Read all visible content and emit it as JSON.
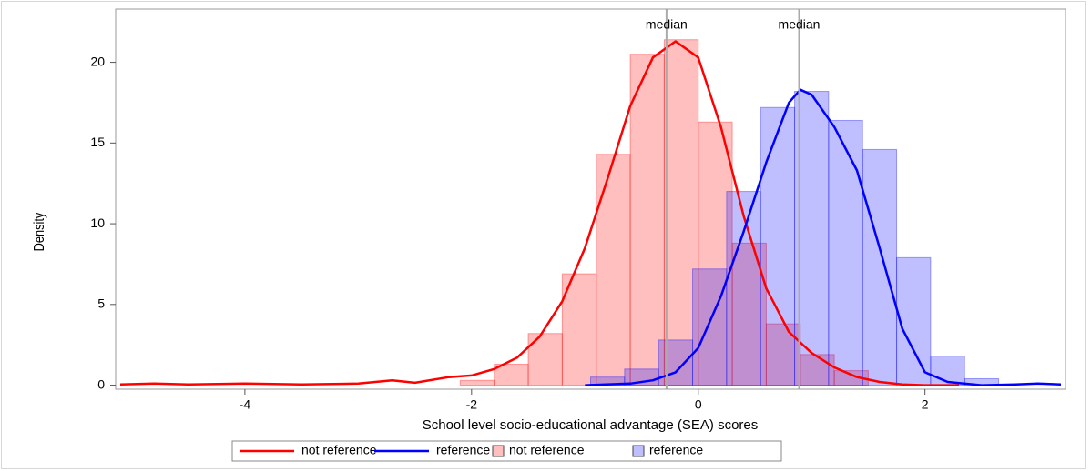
{
  "chart_data": {
    "type": "histogram",
    "x_label": "School level socio-educational advantage (SEA) scores",
    "y_label": "Density",
    "xlim": [
      -5.14,
      3.24
    ],
    "ylim": [
      -0.25,
      23.3
    ],
    "xticks": [
      -4,
      -2,
      0,
      2
    ],
    "yticks": [
      0,
      5,
      10,
      15,
      20
    ],
    "grid": false,
    "annotations": [
      {
        "text": "median",
        "x": -0.28
      },
      {
        "text": "median",
        "x": 0.89
      }
    ],
    "series": [
      {
        "name": "not reference",
        "kind": "line",
        "color": "#ff0000",
        "x": [
          -5.1,
          -4.8,
          -4.5,
          -4.0,
          -3.5,
          -3.0,
          -2.7,
          -2.5,
          -2.2,
          -2.0,
          -1.8,
          -1.6,
          -1.4,
          -1.2,
          -1.0,
          -0.8,
          -0.6,
          -0.4,
          -0.2,
          0.0,
          0.2,
          0.4,
          0.6,
          0.8,
          1.0,
          1.2,
          1.4,
          1.6,
          1.8,
          2.0,
          2.3
        ],
        "values": [
          0.05,
          0.1,
          0.05,
          0.1,
          0.05,
          0.1,
          0.3,
          0.15,
          0.5,
          0.6,
          1.0,
          1.7,
          3.0,
          5.2,
          8.5,
          12.8,
          17.3,
          20.3,
          21.3,
          20.3,
          16.0,
          10.5,
          6.0,
          3.3,
          2.0,
          1.1,
          0.5,
          0.2,
          0.05,
          0.0,
          0.0
        ]
      },
      {
        "name": "reference",
        "kind": "line",
        "color": "#0000ff",
        "x": [
          -1.0,
          -0.6,
          -0.4,
          -0.2,
          0.0,
          0.2,
          0.4,
          0.6,
          0.8,
          0.9,
          1.0,
          1.2,
          1.4,
          1.6,
          1.8,
          2.0,
          2.2,
          2.5,
          2.8,
          3.0,
          3.2
        ],
        "values": [
          0.0,
          0.1,
          0.3,
          0.8,
          2.3,
          5.5,
          9.5,
          13.8,
          17.5,
          18.3,
          18.0,
          16.0,
          13.3,
          8.5,
          3.5,
          0.8,
          0.2,
          0.0,
          0.05,
          0.1,
          0.05
        ]
      },
      {
        "name": "not reference",
        "kind": "histogram",
        "color": "#ff0000",
        "bins": [
          -2.1,
          -1.8,
          -1.5,
          -1.2,
          -0.9,
          -0.6,
          -0.3,
          0.0,
          0.3,
          0.6,
          0.9,
          1.2,
          1.5
        ],
        "values": [
          0.3,
          1.3,
          3.2,
          6.9,
          14.3,
          20.5,
          21.4,
          16.3,
          8.8,
          3.8,
          1.9,
          0.9
        ]
      },
      {
        "name": "reference",
        "kind": "histogram",
        "color": "#0000ff",
        "bins": [
          -0.95,
          -0.65,
          -0.35,
          -0.05,
          0.25,
          0.55,
          0.85,
          1.15,
          1.45,
          1.75,
          2.05,
          2.35,
          2.65
        ],
        "values": [
          0.5,
          1.0,
          2.8,
          7.2,
          12.0,
          17.2,
          18.2,
          16.4,
          14.6,
          7.9,
          1.8,
          0.4
        ]
      }
    ]
  }
}
